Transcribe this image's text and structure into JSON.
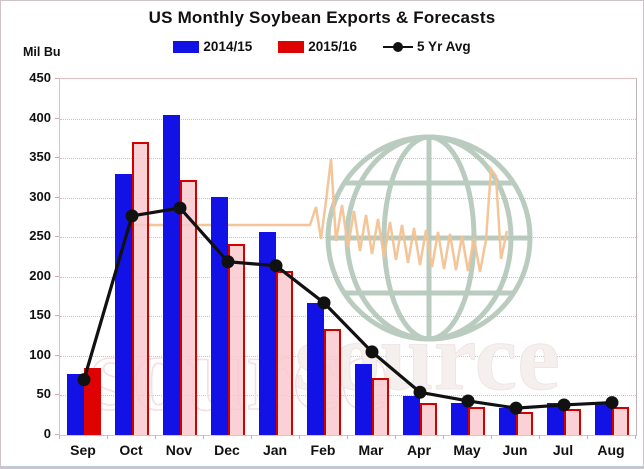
{
  "title": "US Monthly Soybean Exports & Forecasts",
  "y_axis_unit": "Mil Bu",
  "legend": {
    "items": [
      {
        "label": "2014/15",
        "color": "#1212e6",
        "marker": "square"
      },
      {
        "label": "2015/16",
        "color": "#de0202",
        "marker": "square"
      },
      {
        "label": "5 Yr Avg",
        "color": "#111111",
        "marker": "line-dot"
      }
    ]
  },
  "watermark": {
    "text": "source",
    "globe_icon_color": "#a9c0b0",
    "ekg_line_color": "#f3c292"
  },
  "chart_data": {
    "type": "bar",
    "title": "US Monthly Soybean Exports & Forecasts",
    "ylabel": "Mil Bu",
    "xlabel": "",
    "ylim": [
      0,
      450
    ],
    "ytick_step": 50,
    "grid": "dotted-horizontal",
    "legend_position": "top-center",
    "categories": [
      "Sep",
      "Oct",
      "Nov",
      "Dec",
      "Jan",
      "Feb",
      "Mar",
      "Apr",
      "May",
      "Jun",
      "Jul",
      "Aug"
    ],
    "series": [
      {
        "name": "2014/15",
        "type": "bar",
        "color": "#1212e6",
        "values": [
          77,
          330,
          404,
          301,
          257,
          167,
          90,
          49,
          41,
          34,
          41,
          42
        ]
      },
      {
        "name": "2015/16",
        "type": "bar",
        "color": "#de0202",
        "forecast_fill": "#f9c9ce",
        "actual_months": [
          "Sep"
        ],
        "values": [
          85,
          370,
          322,
          241,
          207,
          134,
          72,
          40,
          35,
          29,
          33,
          35
        ]
      },
      {
        "name": "5 Yr Avg",
        "type": "line",
        "color": "#111111",
        "values": [
          70,
          277,
          287,
          219,
          214,
          167,
          105,
          54,
          43,
          34,
          38,
          41
        ]
      }
    ]
  }
}
